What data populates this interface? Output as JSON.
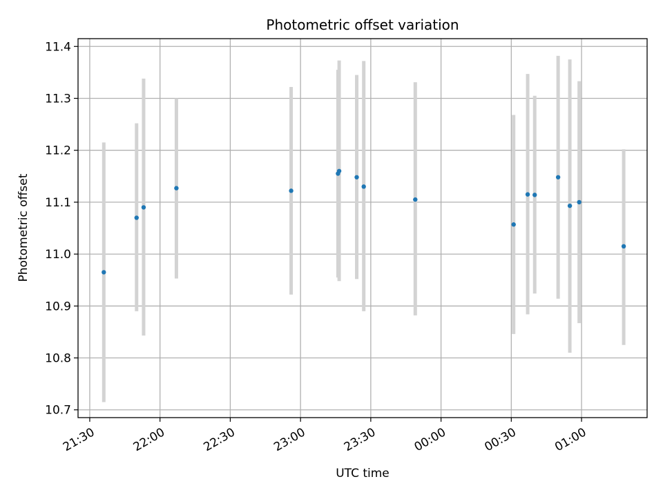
{
  "chart_data": {
    "type": "scatter",
    "title": "Photometric offset variation",
    "xlabel": "UTC time",
    "ylabel": "Photometric offset",
    "x_ticks": [
      "21:30",
      "22:00",
      "22:30",
      "23:00",
      "23:30",
      "00:00",
      "00:30",
      "01:00"
    ],
    "x_tick_minutes": [
      0,
      30,
      60,
      90,
      120,
      150,
      180,
      210
    ],
    "xlim_minutes": [
      -5,
      238
    ],
    "y_ticks": [
      "10.7",
      "10.8",
      "10.9",
      "11.0",
      "11.1",
      "11.2",
      "11.3",
      "11.4"
    ],
    "y_tick_values": [
      10.7,
      10.8,
      10.9,
      11.0,
      11.1,
      11.2,
      11.3,
      11.4
    ],
    "ylim": [
      10.685,
      11.415
    ],
    "grid": true,
    "colors": {
      "point": "#1f77b4",
      "errorbar": "#d3d3d3",
      "grid": "#b0b0b0"
    },
    "points": [
      {
        "t": "21:36",
        "minutes": 6,
        "y": 10.965,
        "err_low": 10.715,
        "err_high": 11.215
      },
      {
        "t": "21:50",
        "minutes": 20,
        "y": 11.07,
        "err_low": 10.89,
        "err_high": 11.252
      },
      {
        "t": "21:53",
        "minutes": 23,
        "y": 11.09,
        "err_low": 10.843,
        "err_high": 11.338
      },
      {
        "t": "22:07",
        "minutes": 37,
        "y": 11.127,
        "err_low": 10.953,
        "err_high": 11.3
      },
      {
        "t": "22:56",
        "minutes": 86,
        "y": 11.122,
        "err_low": 10.922,
        "err_high": 11.322
      },
      {
        "t": "23:16",
        "minutes": 106,
        "y": 11.155,
        "err_low": 10.955,
        "err_high": 11.355
      },
      {
        "t": "23:16",
        "minutes": 106.5,
        "y": 11.16,
        "err_low": 10.948,
        "err_high": 11.373
      },
      {
        "t": "23:24",
        "minutes": 114,
        "y": 11.148,
        "err_low": 10.952,
        "err_high": 11.345
      },
      {
        "t": "23:27",
        "minutes": 117,
        "y": 11.13,
        "err_low": 10.89,
        "err_high": 11.372
      },
      {
        "t": "23:49",
        "minutes": 139,
        "y": 11.105,
        "err_low": 10.882,
        "err_high": 11.331
      },
      {
        "t": "00:31",
        "minutes": 181,
        "y": 11.057,
        "err_low": 10.846,
        "err_high": 11.268
      },
      {
        "t": "00:37",
        "minutes": 187,
        "y": 11.115,
        "err_low": 10.884,
        "err_high": 11.347
      },
      {
        "t": "00:40",
        "minutes": 190,
        "y": 11.114,
        "err_low": 10.924,
        "err_high": 11.305
      },
      {
        "t": "00:50",
        "minutes": 200,
        "y": 11.148,
        "err_low": 10.914,
        "err_high": 11.382
      },
      {
        "t": "00:55",
        "minutes": 205,
        "y": 11.093,
        "err_low": 10.81,
        "err_high": 11.375
      },
      {
        "t": "00:59",
        "minutes": 209,
        "y": 11.1,
        "err_low": 10.867,
        "err_high": 11.333
      },
      {
        "t": "01:18",
        "minutes": 228,
        "y": 11.015,
        "err_low": 10.825,
        "err_high": 11.202
      }
    ]
  }
}
